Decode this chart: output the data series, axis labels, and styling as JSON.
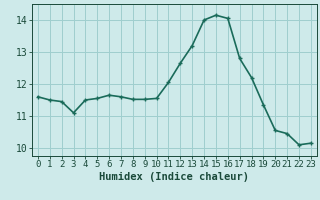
{
  "x": [
    0,
    1,
    2,
    3,
    4,
    5,
    6,
    7,
    8,
    9,
    10,
    11,
    12,
    13,
    14,
    15,
    16,
    17,
    18,
    19,
    20,
    21,
    22,
    23
  ],
  "y": [
    11.6,
    11.5,
    11.45,
    11.1,
    11.5,
    11.55,
    11.65,
    11.6,
    11.52,
    11.52,
    11.55,
    12.05,
    12.65,
    13.2,
    14.0,
    14.15,
    14.05,
    12.8,
    12.2,
    11.35,
    10.55,
    10.45,
    10.1,
    10.15
  ],
  "line_color": "#1a6b5a",
  "marker": "+",
  "bg_color": "#ceeaea",
  "grid_color": "#9fcece",
  "xlabel": "Humidex (Indice chaleur)",
  "ylim": [
    9.75,
    14.5
  ],
  "xlim": [
    -0.5,
    23.5
  ],
  "yticks": [
    10,
    11,
    12,
    13,
    14
  ],
  "xticks": [
    0,
    1,
    2,
    3,
    4,
    5,
    6,
    7,
    8,
    9,
    10,
    11,
    12,
    13,
    14,
    15,
    16,
    17,
    18,
    19,
    20,
    21,
    22,
    23
  ],
  "font_color": "#1a4a3a",
  "xlabel_fontsize": 7.5,
  "tick_fontsize": 6.5,
  "linewidth": 1.2,
  "markersize": 3.5
}
